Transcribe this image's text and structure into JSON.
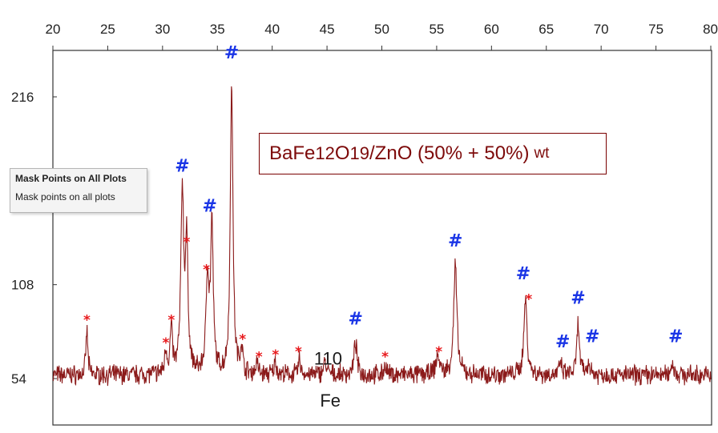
{
  "chart_data": {
    "type": "line",
    "title": "",
    "xlabel": "",
    "ylabel": "",
    "xlim": [
      20,
      80
    ],
    "ylim": [
      30,
      235
    ],
    "x_ticks": [
      "20",
      "25",
      "30",
      "35",
      "40",
      "45",
      "50",
      "55",
      "60",
      "65",
      "70",
      "75",
      "80"
    ],
    "y_ticks": [
      "54",
      "108",
      "216"
    ],
    "legend": {
      "base": "BaFe",
      "sub1": "12",
      "mid": "O",
      "sub2": "19",
      "rest": "/ZnO (50% + 50%)",
      "unit": "wt"
    },
    "series_color": "#8b1a1a",
    "baseline": 56,
    "peaks": [
      {
        "x": 23.1,
        "y": 82,
        "w": 0.1
      },
      {
        "x": 30.3,
        "y": 70,
        "w": 0.12
      },
      {
        "x": 30.8,
        "y": 82,
        "w": 0.12
      },
      {
        "x": 31.8,
        "y": 160,
        "w": 0.15
      },
      {
        "x": 32.2,
        "y": 128,
        "w": 0.15
      },
      {
        "x": 34.1,
        "y": 112,
        "w": 0.15
      },
      {
        "x": 34.5,
        "y": 140,
        "w": 0.14
      },
      {
        "x": 36.3,
        "y": 226,
        "w": 0.14
      },
      {
        "x": 37.2,
        "y": 72,
        "w": 0.12
      },
      {
        "x": 38.6,
        "y": 63,
        "w": 0.12
      },
      {
        "x": 40.3,
        "y": 64,
        "w": 0.12
      },
      {
        "x": 42.5,
        "y": 65,
        "w": 0.12
      },
      {
        "x": 44.8,
        "y": 63,
        "w": 0.18
      },
      {
        "x": 47.6,
        "y": 75,
        "w": 0.15
      },
      {
        "x": 50.3,
        "y": 62,
        "w": 0.12
      },
      {
        "x": 55.1,
        "y": 67,
        "w": 0.2
      },
      {
        "x": 56.7,
        "y": 120,
        "w": 0.17
      },
      {
        "x": 63.1,
        "y": 100,
        "w": 0.17
      },
      {
        "x": 66.3,
        "y": 62,
        "w": 0.15
      },
      {
        "x": 67.9,
        "y": 85,
        "w": 0.14
      },
      {
        "x": 68.9,
        "y": 63,
        "w": 0.15
      },
      {
        "x": 76.5,
        "y": 63,
        "w": 0.15
      }
    ],
    "hash_markers": [
      {
        "x": 31.8,
        "y": 173
      },
      {
        "x": 34.3,
        "y": 150
      },
      {
        "x": 36.3,
        "y": 238
      },
      {
        "x": 47.6,
        "y": 85
      },
      {
        "x": 56.7,
        "y": 130
      },
      {
        "x": 62.9,
        "y": 111
      },
      {
        "x": 66.5,
        "y": 72
      },
      {
        "x": 67.9,
        "y": 97
      },
      {
        "x": 69.2,
        "y": 75
      },
      {
        "x": 76.8,
        "y": 75
      }
    ],
    "star_markers": [
      {
        "x": 23.1,
        "y": 85
      },
      {
        "x": 30.3,
        "y": 72
      },
      {
        "x": 30.8,
        "y": 85
      },
      {
        "x": 32.2,
        "y": 130
      },
      {
        "x": 34.0,
        "y": 114
      },
      {
        "x": 37.3,
        "y": 74
      },
      {
        "x": 38.8,
        "y": 64
      },
      {
        "x": 40.3,
        "y": 65
      },
      {
        "x": 42.4,
        "y": 67
      },
      {
        "x": 50.3,
        "y": 64
      },
      {
        "x": 55.2,
        "y": 67
      },
      {
        "x": 63.4,
        "y": 97
      }
    ],
    "annotations": [
      {
        "text": "110",
        "x": 45.1,
        "y": 62
      },
      {
        "text": "Fe",
        "x": 45.3,
        "y": 38
      }
    ]
  },
  "tooltip": {
    "title": "Mask Points on All Plots",
    "body": "Mask points on all plots"
  }
}
